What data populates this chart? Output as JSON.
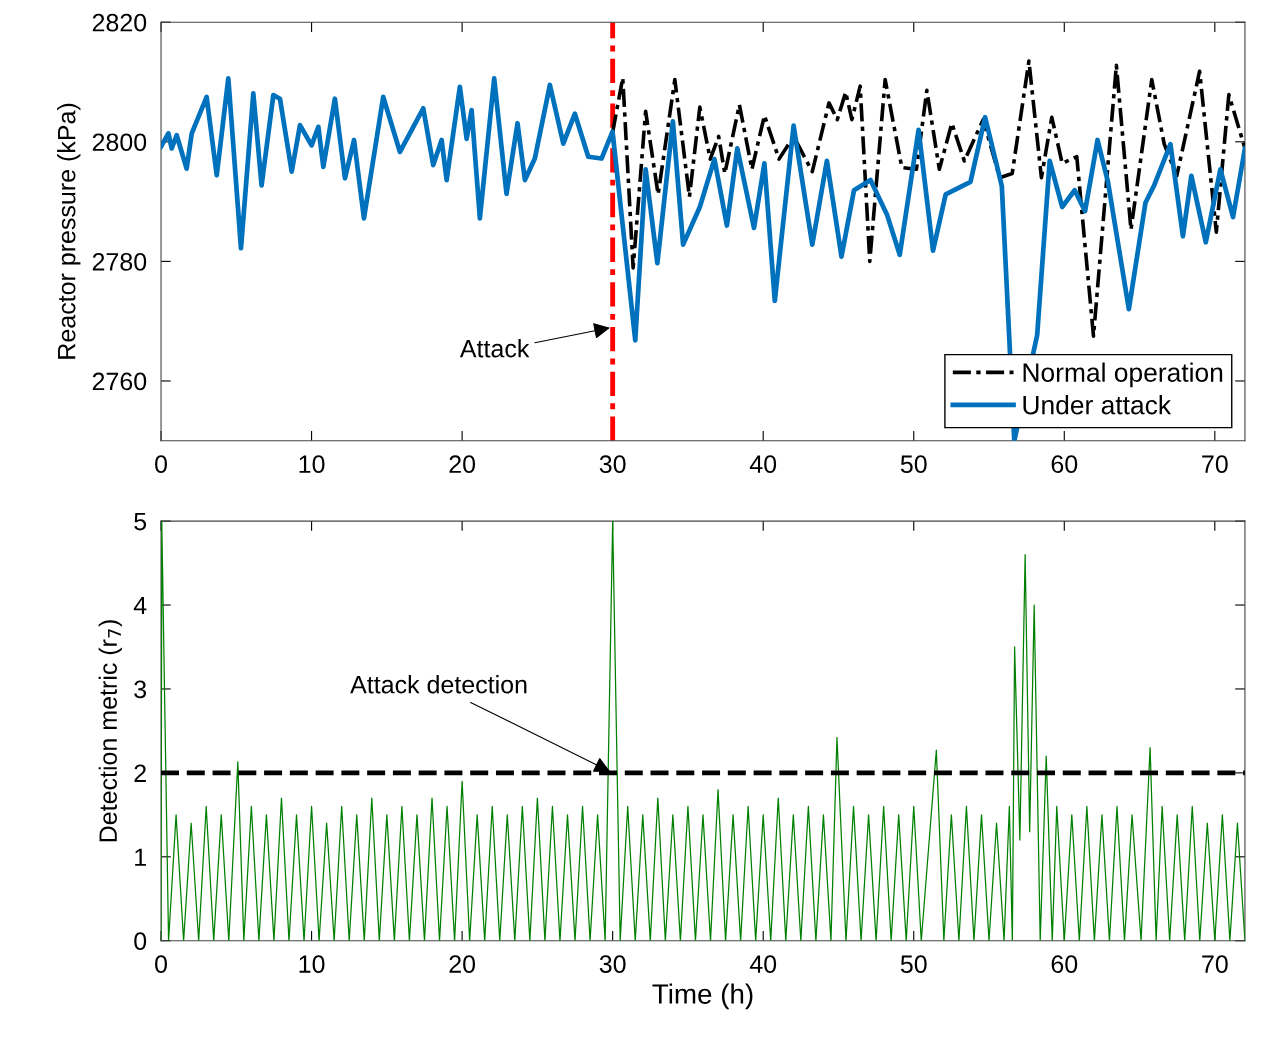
{
  "chart_data": [
    {
      "type": "line",
      "ylabel": "Reactor pressure (kPa)",
      "xlim": [
        0,
        72
      ],
      "xticks": [
        0,
        10,
        20,
        30,
        40,
        50,
        60,
        70
      ],
      "ylim": [
        2750,
        2820
      ],
      "yticks": [
        2760,
        2780,
        2800,
        2820
      ],
      "grid": false,
      "legend": "bottom right",
      "series": [
        {
          "name": "Normal operation",
          "color": "#000000",
          "line_style": "dashdot",
          "x": [
            30.0,
            30.67,
            31.36,
            32.19,
            33.02,
            34.13,
            35.1,
            35.79,
            36.48,
            37.04,
            37.45,
            38.42,
            39.25,
            40.08,
            41.05,
            42.02,
            43.26,
            44.37,
            44.92,
            45.48,
            45.89,
            46.44,
            47.08,
            48.1,
            49.21,
            50.18,
            50.87,
            51.7,
            52.53,
            53.36,
            54.61,
            55.71,
            56.54,
            57.65,
            58.48,
            59.17,
            59.86,
            60.83,
            61.94,
            63.46,
            64.43,
            65.81,
            66.64,
            67.47,
            68.99,
            70.1,
            70.93,
            72.0
          ],
          "values": [
            2801.6,
            2810.7,
            2778.9,
            2805.1,
            2791.2,
            2810.4,
            2790.8,
            2805.8,
            2797.1,
            2800.9,
            2794.7,
            2806.2,
            2795.4,
            2804.4,
            2797.1,
            2800.9,
            2795.0,
            2806.5,
            2803.7,
            2808.3,
            2803.7,
            2809.3,
            2780.0,
            2810.4,
            2795.7,
            2795.4,
            2808.6,
            2795.4,
            2803.1,
            2796.8,
            2803.7,
            2794.0,
            2794.7,
            2813.5,
            2794.0,
            2804.1,
            2796.4,
            2797.5,
            2767.5,
            2812.8,
            2785.3,
            2810.4,
            2799.6,
            2794.3,
            2811.8,
            2784.9,
            2807.9,
            2798.9
          ]
        },
        {
          "name": "Under attack",
          "color": "#0072bd",
          "line_style": "solid",
          "x": [
            0,
            0.49,
            0.71,
            1.04,
            1.7,
            2.04,
            3.03,
            3.7,
            4.47,
            5.31,
            6.13,
            6.68,
            7.46,
            7.9,
            8.68,
            9.23,
            10.0,
            10.45,
            10.78,
            11.55,
            12.22,
            12.82,
            13.48,
            14.76,
            15.87,
            17.42,
            18.08,
            18.64,
            18.97,
            19.85,
            20.3,
            20.63,
            21.18,
            22.13,
            22.95,
            23.68,
            24.17,
            24.83,
            25.83,
            26.72,
            27.49,
            28.38,
            29.26,
            29.99,
            31.5,
            32.19,
            32.97,
            34.0,
            34.68,
            35.79,
            36.76,
            37.59,
            38.28,
            39.39,
            40.08,
            40.77,
            42.02,
            43.26,
            44.23,
            45.2,
            46.03,
            47.13,
            48.24,
            49.07,
            50.32,
            51.28,
            52.12,
            53.77,
            54.74,
            55.85,
            56.68,
            58.2,
            59.03,
            59.86,
            60.69,
            61.38,
            62.21,
            62.9,
            64.29,
            65.39,
            65.95,
            67.05,
            67.88,
            68.44,
            69.4,
            70.37,
            71.21,
            72.0
          ],
          "values": [
            2799.2,
            2801.4,
            2798.9,
            2801.1,
            2795.5,
            2801.4,
            2807.5,
            2794.4,
            2810.6,
            2782.2,
            2808.1,
            2792.7,
            2807.8,
            2807.2,
            2795.0,
            2802.8,
            2799.4,
            2802.5,
            2795.8,
            2807.2,
            2793.9,
            2800.3,
            2787.2,
            2807.5,
            2798.3,
            2805.6,
            2796.1,
            2800.3,
            2793.6,
            2809.2,
            2800.5,
            2805.3,
            2787.2,
            2810.6,
            2791.3,
            2803.1,
            2793.6,
            2797.2,
            2809.5,
            2799.7,
            2804.7,
            2797.5,
            2797.2,
            2801.7,
            2766.8,
            2795.4,
            2779.7,
            2803.4,
            2782.8,
            2789.1,
            2797.1,
            2786.0,
            2798.9,
            2785.6,
            2796.4,
            2773.4,
            2802.7,
            2782.8,
            2796.8,
            2780.8,
            2791.9,
            2793.6,
            2787.7,
            2781.1,
            2802.0,
            2781.8,
            2791.2,
            2793.3,
            2804.1,
            2792.6,
            2750,
            2767.7,
            2796.8,
            2789.1,
            2791.9,
            2788.4,
            2800.3,
            2793.3,
            2772.0,
            2789.8,
            2792.6,
            2799.6,
            2784.2,
            2794.3,
            2783.2,
            2795.4,
            2787.4,
            2798.9
          ]
        }
      ],
      "ref_lines": [
        {
          "axis": "x",
          "value": 30,
          "color": "#ff0000",
          "line_style": "dashdot"
        }
      ],
      "annotations": [
        {
          "text": "Attack",
          "x": 30,
          "y": 2769
        }
      ]
    },
    {
      "type": "line",
      "xlabel": "Time (h)",
      "ylabel": "Detection metric (r$_{7}$)",
      "xlim": [
        0,
        72
      ],
      "xticks": [
        0,
        10,
        20,
        30,
        40,
        50,
        60,
        70
      ],
      "ylim": [
        0,
        5
      ],
      "yticks": [
        0,
        1,
        2,
        3,
        4,
        5
      ],
      "grid": false,
      "series": [
        {
          "color": "#008000",
          "line_style": "solid",
          "x": [
            0,
            0.05,
            0.5,
            1,
            1.5,
            2,
            2.5,
            3,
            3.5,
            4,
            4.5,
            5.1,
            5.5,
            6,
            6.5,
            7,
            7.5,
            8,
            8.5,
            9,
            9.5,
            10,
            10.5,
            11,
            11.5,
            12,
            12.5,
            13,
            13.5,
            14,
            14.5,
            15,
            15.5,
            16,
            16.5,
            17,
            17.5,
            18,
            18.5,
            19,
            19.5,
            20,
            20.5,
            21,
            21.5,
            22,
            22.5,
            23,
            23.5,
            24,
            24.5,
            25,
            25.5,
            26,
            26.5,
            27,
            27.5,
            28,
            28.5,
            29,
            29.5,
            30,
            30.5,
            31,
            31.5,
            32,
            32.5,
            33,
            33.5,
            34,
            34.5,
            35,
            35.5,
            36,
            36.5,
            37,
            37.5,
            38,
            38.5,
            39,
            39.5,
            40,
            40.5,
            41,
            41.5,
            42,
            42.5,
            43,
            43.5,
            44,
            44.5,
            44.9,
            45.5,
            46,
            46.5,
            47,
            47.5,
            48,
            48.5,
            49,
            49.5,
            50,
            50.5,
            51.5,
            52,
            52.5,
            53,
            53.5,
            54,
            54.5,
            55,
            55.5,
            56,
            56.35,
            56.55,
            56.7,
            57.05,
            57.4,
            57.7,
            58,
            58.4,
            58.8,
            59.2,
            59.5,
            60,
            60.5,
            61,
            61.5,
            62,
            62.5,
            63,
            63.5,
            64,
            64.5,
            65.1,
            65.7,
            66.1,
            66.5,
            67,
            67.5,
            68,
            68.5,
            69,
            69.5,
            70,
            70.5,
            71,
            71.5,
            72
          ],
          "values": [
            0,
            5,
            0,
            1.5,
            0,
            1.4,
            0,
            1.6,
            0,
            1.5,
            0,
            2.13,
            0,
            1.6,
            0,
            1.5,
            0,
            1.7,
            0,
            1.5,
            0,
            1.6,
            0,
            1.4,
            0,
            1.6,
            0,
            1.5,
            0,
            1.7,
            0,
            1.5,
            0,
            1.6,
            0,
            1.5,
            0,
            1.7,
            0,
            1.6,
            0,
            1.9,
            0,
            1.5,
            0,
            1.6,
            0,
            1.5,
            0,
            1.6,
            0,
            1.7,
            0,
            1.6,
            0,
            1.5,
            0,
            1.6,
            0,
            1.5,
            0,
            5,
            0,
            1.6,
            0,
            1.5,
            0,
            1.7,
            0,
            1.5,
            0,
            1.6,
            0,
            1.5,
            0,
            1.8,
            0,
            1.5,
            0,
            1.6,
            0,
            1.5,
            0,
            1.7,
            0,
            1.5,
            0,
            1.6,
            0,
            1.5,
            0,
            2.42,
            0,
            1.6,
            0,
            1.5,
            0,
            1.6,
            0,
            1.5,
            0,
            1.6,
            0,
            2.27,
            0,
            1.5,
            0,
            1.6,
            0,
            1.5,
            0,
            1.4,
            0,
            1.6,
            0,
            3.5,
            1.2,
            4.6,
            1.3,
            4.0,
            0,
            2.2,
            0,
            1.6,
            0,
            1.5,
            0,
            1.6,
            0,
            1.5,
            0,
            1.6,
            0,
            1.5,
            0,
            2.3,
            0,
            1.6,
            0,
            1.5,
            0,
            1.6,
            0,
            1.4,
            0,
            1.5,
            0,
            1.4,
            0
          ]
        }
      ],
      "ref_lines": [
        {
          "axis": "y",
          "value": 2,
          "color": "#000000",
          "line_style": "dashed"
        }
      ],
      "annotations": [
        {
          "text": "Attack detection",
          "x": 30,
          "y": 2
        }
      ]
    }
  ]
}
